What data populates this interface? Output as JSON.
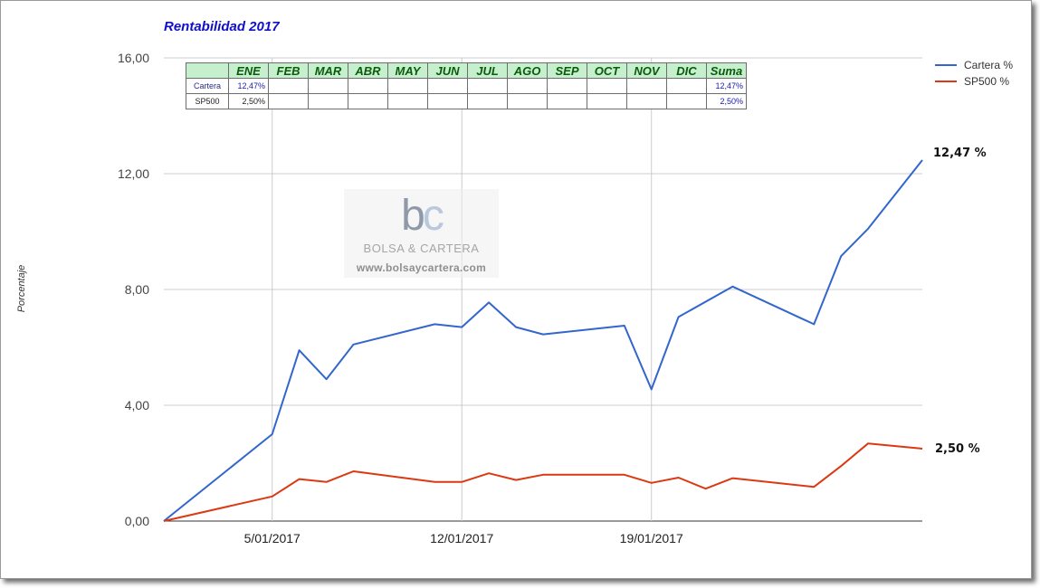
{
  "chart_data": {
    "type": "line",
    "title": "Rentabilidad 2017",
    "ylabel": "Porcentaje",
    "xlabel": "",
    "ylim": [
      0,
      16
    ],
    "yticks": [
      "0,00",
      "4,00",
      "8,00",
      "12,00",
      "16,00"
    ],
    "xlim": [
      "2017-01-01",
      "2017-01-29"
    ],
    "xticks": [
      {
        "date": "2017-01-05",
        "label": "5/01/2017"
      },
      {
        "date": "2017-01-12",
        "label": "12/01/2017"
      },
      {
        "date": "2017-01-19",
        "label": "19/01/2017"
      }
    ],
    "grid": true,
    "legend": "top-right",
    "series": [
      {
        "name": "Cartera %",
        "color": "#3366cc",
        "end_label": "12,47 %",
        "points": [
          {
            "x": "2017-01-01",
            "y": 0.0
          },
          {
            "x": "2017-01-05",
            "y": 3.0
          },
          {
            "x": "2017-01-06",
            "y": 5.9
          },
          {
            "x": "2017-01-07",
            "y": 4.9
          },
          {
            "x": "2017-01-08",
            "y": 6.1
          },
          {
            "x": "2017-01-11",
            "y": 6.8
          },
          {
            "x": "2017-01-12",
            "y": 6.7
          },
          {
            "x": "2017-01-13",
            "y": 7.55
          },
          {
            "x": "2017-01-14",
            "y": 6.7
          },
          {
            "x": "2017-01-15",
            "y": 6.45
          },
          {
            "x": "2017-01-18",
            "y": 6.75
          },
          {
            "x": "2017-01-19",
            "y": 4.55
          },
          {
            "x": "2017-01-20",
            "y": 7.05
          },
          {
            "x": "2017-01-22",
            "y": 8.1
          },
          {
            "x": "2017-01-25",
            "y": 6.8
          },
          {
            "x": "2017-01-26",
            "y": 9.15
          },
          {
            "x": "2017-01-27",
            "y": 10.1
          },
          {
            "x": "2017-01-29",
            "y": 12.47
          }
        ]
      },
      {
        "name": "SP500 %",
        "color": "#dc3912",
        "end_label": "2,50 %",
        "points": [
          {
            "x": "2017-01-01",
            "y": 0.0
          },
          {
            "x": "2017-01-05",
            "y": 0.85
          },
          {
            "x": "2017-01-06",
            "y": 1.45
          },
          {
            "x": "2017-01-07",
            "y": 1.35
          },
          {
            "x": "2017-01-08",
            "y": 1.72
          },
          {
            "x": "2017-01-11",
            "y": 1.35
          },
          {
            "x": "2017-01-12",
            "y": 1.35
          },
          {
            "x": "2017-01-13",
            "y": 1.65
          },
          {
            "x": "2017-01-14",
            "y": 1.42
          },
          {
            "x": "2017-01-15",
            "y": 1.6
          },
          {
            "x": "2017-01-18",
            "y": 1.6
          },
          {
            "x": "2017-01-19",
            "y": 1.32
          },
          {
            "x": "2017-01-20",
            "y": 1.5
          },
          {
            "x": "2017-01-21",
            "y": 1.12
          },
          {
            "x": "2017-01-22",
            "y": 1.48
          },
          {
            "x": "2017-01-25",
            "y": 1.18
          },
          {
            "x": "2017-01-26",
            "y": 1.9
          },
          {
            "x": "2017-01-27",
            "y": 2.68
          },
          {
            "x": "2017-01-29",
            "y": 2.5
          }
        ]
      }
    ]
  },
  "monthly_table": {
    "headers": [
      "ENE",
      "FEB",
      "MAR",
      "ABR",
      "MAY",
      "JUN",
      "JUL",
      "AGO",
      "SEP",
      "OCT",
      "NOV",
      "DIC",
      "Suma"
    ],
    "rows": [
      {
        "label": "Cartera",
        "values": [
          "12,47%",
          "",
          "",
          "",
          "",
          "",
          "",
          "",
          "",
          "",
          "",
          "",
          "12,47%"
        ]
      },
      {
        "label": "SP500",
        "values": [
          "2,50%",
          "",
          "",
          "",
          "",
          "",
          "",
          "",
          "",
          "",
          "",
          "",
          "2,50%"
        ]
      }
    ]
  },
  "watermark": {
    "logo_b": "b",
    "logo_c": "c",
    "name": "BOLSA & CARTERA",
    "url": "www.bolsaycartera.com"
  }
}
